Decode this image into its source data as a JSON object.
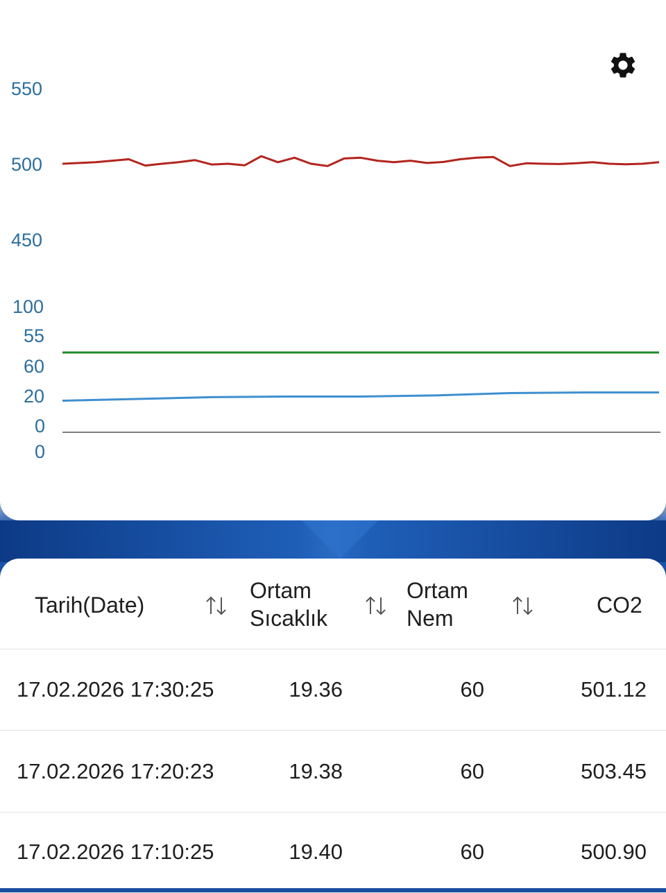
{
  "chart": {
    "upper_axis_ticks": [
      "550",
      "500",
      "450"
    ],
    "lower_axis_ticks": [
      "100",
      "55",
      "60",
      "20",
      "0",
      "0"
    ],
    "colors": {
      "co2": "#b3241d",
      "humidity": "#1f8a2a",
      "temperature": "#3d8fd1",
      "baseline": "#555555",
      "tick_text": "#2c6e9e"
    },
    "settings_icon": "gear-icon"
  },
  "chart_data": {
    "type": "line",
    "title": "",
    "xlabel": "",
    "ylabel": "",
    "upper_panel": {
      "ylim": [
        450,
        550
      ],
      "series": [
        {
          "values": [
            500,
            500.5,
            501,
            502,
            503,
            498.8,
            500,
            501,
            502.4,
            499.5,
            500,
            499,
            505,
            501,
            504,
            500,
            498.5,
            503.5,
            504,
            502,
            501,
            502,
            500.5,
            501.2,
            503,
            504,
            504.5,
            498.5,
            500.3,
            500,
            499.8,
            500.3,
            501,
            500,
            499.7,
            500,
            501
          ]
        }
      ]
    },
    "lower_panel": {
      "series": [
        {
          "values": [
            60,
            60,
            60,
            60,
            60,
            60,
            60,
            60,
            60
          ]
        },
        {
          "values": [
            19.0,
            19.3,
            19.6,
            19.7,
            19.7,
            19.9,
            20.3,
            20.4,
            20.4
          ]
        }
      ]
    }
  },
  "table": {
    "headers": {
      "date": "Tarih(Date)",
      "temp_line1": "Ortam",
      "temp_line2": "Sıcaklık",
      "hum_line1": "Ortam",
      "hum_line2": "Nem",
      "co2": "CO2"
    },
    "sort_icon": "sort-arrows-icon",
    "rows": [
      {
        "date": "17.02.2026 17:30:25",
        "temp": "19.36",
        "hum": "60",
        "co2": "501.12"
      },
      {
        "date": "17.02.2026 17:20:23",
        "temp": "19.38",
        "hum": "60",
        "co2": "503.45"
      },
      {
        "date": "17.02.2026 17:10:25",
        "temp": "19.40",
        "hum": "60",
        "co2": "500.90"
      }
    ]
  }
}
